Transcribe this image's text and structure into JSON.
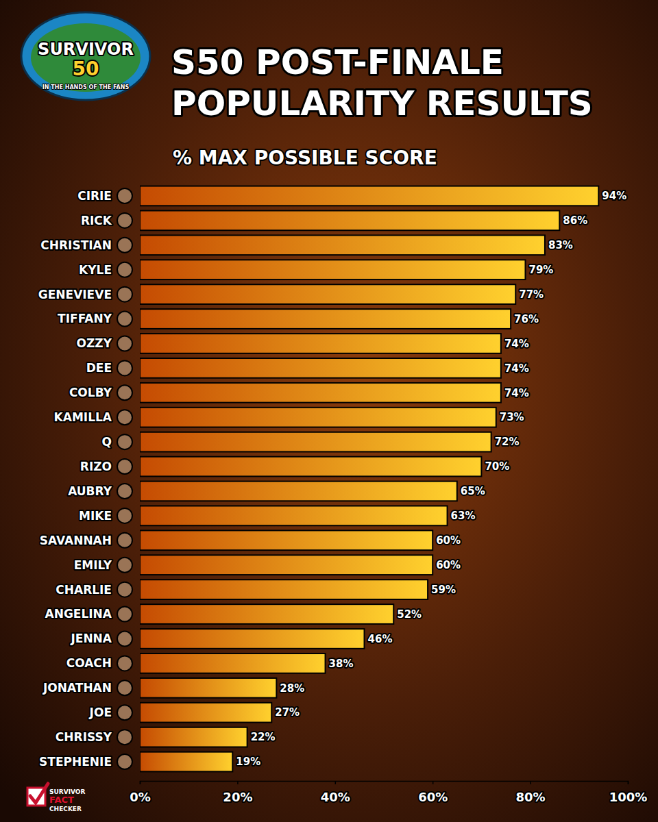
{
  "chart_data": {
    "type": "bar",
    "orientation": "horizontal",
    "title": "S50 POST-FINALE POPULARITY RESULTS",
    "subtitle": "% MAX POSSIBLE SCORE",
    "annotations": [
      "SURVIVOR",
      "50",
      "IN THE HANDS OF THE FANS",
      "SURVIVOR",
      "FACT",
      "CHECKER"
    ],
    "categories": [
      "CIRIE",
      "RICK",
      "CHRISTIAN",
      "KYLE",
      "GENEVIEVE",
      "TIFFANY",
      "OZZY",
      "DEE",
      "COLBY",
      "KAMILLA",
      "Q",
      "RIZO",
      "AUBRY",
      "MIKE",
      "SAVANNAH",
      "EMILY",
      "CHARLIE",
      "ANGELINA",
      "JENNA",
      "COACH",
      "JONATHAN",
      "JOE",
      "CHRISSY",
      "STEPHENIE"
    ],
    "values": [
      94,
      86,
      83,
      79,
      77,
      76,
      74,
      74,
      74,
      73,
      72,
      70,
      65,
      63,
      60,
      60,
      59,
      52,
      46,
      38,
      28,
      27,
      22,
      19
    ],
    "value_labels": [
      "94%",
      "86%",
      "83%",
      "79%",
      "77%",
      "76%",
      "74%",
      "74%",
      "74%",
      "73%",
      "72%",
      "70%",
      "65%",
      "63%",
      "60%",
      "60%",
      "59%",
      "52%",
      "46%",
      "38%",
      "28%",
      "27%",
      "22%",
      "19%"
    ],
    "color": "#ffd12e",
    "xlim": [
      0,
      100
    ],
    "xticks": [
      {
        "value": 0,
        "label": "0%"
      },
      {
        "value": 20,
        "label": "20%"
      },
      {
        "value": 40,
        "label": "40%"
      },
      {
        "value": 60,
        "label": "60%"
      },
      {
        "value": 80,
        "label": "80%"
      },
      {
        "value": 100,
        "label": "100%"
      }
    ],
    "grid": false,
    "data_labels": true
  }
}
